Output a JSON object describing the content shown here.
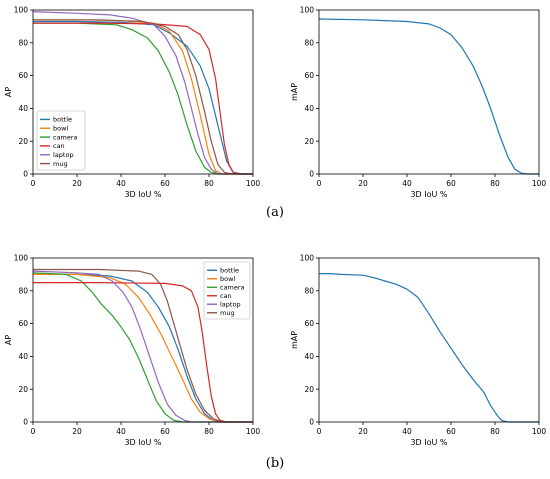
{
  "captions": {
    "a": "(a)",
    "b": "(b)"
  },
  "chart_data": [
    {
      "id": "a-left",
      "type": "line",
      "xlabel": "3D IoU %",
      "ylabel": "AP",
      "xlim": [
        0,
        100
      ],
      "ylim": [
        0,
        100
      ],
      "xticks": [
        0,
        20,
        40,
        60,
        80,
        100
      ],
      "yticks": [
        0,
        20,
        40,
        60,
        80,
        100
      ],
      "grid": false,
      "legend": "lower-left",
      "series": [
        {
          "name": "bottle",
          "color": "#1f77b4",
          "points": [
            [
              0,
              93
            ],
            [
              20,
              93
            ],
            [
              40,
              92.5
            ],
            [
              55,
              91
            ],
            [
              62,
              86
            ],
            [
              70,
              78
            ],
            [
              76,
              66
            ],
            [
              80,
              52
            ],
            [
              84,
              30
            ],
            [
              88,
              8
            ],
            [
              91,
              1
            ],
            [
              95,
              0
            ],
            [
              100,
              0
            ]
          ]
        },
        {
          "name": "bowl",
          "color": "#ff7f0e",
          "points": [
            [
              0,
              94
            ],
            [
              20,
              94
            ],
            [
              40,
              93.5
            ],
            [
              55,
              92
            ],
            [
              62,
              87
            ],
            [
              68,
              75
            ],
            [
              72,
              58
            ],
            [
              76,
              36
            ],
            [
              80,
              12
            ],
            [
              83,
              2
            ],
            [
              86,
              0
            ],
            [
              100,
              0
            ]
          ]
        },
        {
          "name": "camera",
          "color": "#2ca02c",
          "points": [
            [
              0,
              92
            ],
            [
              20,
              92
            ],
            [
              38,
              91
            ],
            [
              45,
              88
            ],
            [
              52,
              83
            ],
            [
              57,
              75
            ],
            [
              62,
              62
            ],
            [
              66,
              48
            ],
            [
              70,
              30
            ],
            [
              74,
              14
            ],
            [
              78,
              4
            ],
            [
              81,
              1
            ],
            [
              84,
              0
            ],
            [
              100,
              0
            ]
          ]
        },
        {
          "name": "can",
          "color": "#d62728",
          "points": [
            [
              0,
              92
            ],
            [
              30,
              92
            ],
            [
              55,
              91.5
            ],
            [
              70,
              90
            ],
            [
              76,
              85
            ],
            [
              80,
              76
            ],
            [
              83,
              58
            ],
            [
              85,
              38
            ],
            [
              87,
              18
            ],
            [
              89,
              6
            ],
            [
              91,
              1
            ],
            [
              94,
              0
            ],
            [
              100,
              0
            ]
          ]
        },
        {
          "name": "laptop",
          "color": "#9467bd",
          "points": [
            [
              0,
              99
            ],
            [
              20,
              98
            ],
            [
              35,
              97
            ],
            [
              45,
              95
            ],
            [
              55,
              91
            ],
            [
              60,
              84
            ],
            [
              65,
              72
            ],
            [
              69,
              56
            ],
            [
              72,
              40
            ],
            [
              75,
              24
            ],
            [
              78,
              10
            ],
            [
              81,
              3
            ],
            [
              84,
              0
            ],
            [
              100,
              0
            ]
          ]
        },
        {
          "name": "mug",
          "color": "#8c564b",
          "points": [
            [
              0,
              94
            ],
            [
              30,
              94
            ],
            [
              50,
              93
            ],
            [
              60,
              90
            ],
            [
              66,
              85
            ],
            [
              70,
              76
            ],
            [
              74,
              60
            ],
            [
              78,
              38
            ],
            [
              81,
              20
            ],
            [
              84,
              6
            ],
            [
              87,
              1
            ],
            [
              90,
              0
            ],
            [
              100,
              0
            ]
          ]
        }
      ]
    },
    {
      "id": "a-right",
      "type": "line",
      "xlabel": "3D IoU %",
      "ylabel": "mAP",
      "xlim": [
        0,
        100
      ],
      "ylim": [
        0,
        100
      ],
      "xticks": [
        0,
        20,
        40,
        60,
        80,
        100
      ],
      "yticks": [
        0,
        20,
        40,
        60,
        80,
        100
      ],
      "grid": false,
      "series": [
        {
          "name": "",
          "color": "#1f77b4",
          "points": [
            [
              0,
              94.5
            ],
            [
              20,
              94
            ],
            [
              40,
              93
            ],
            [
              50,
              91.5
            ],
            [
              55,
              89
            ],
            [
              60,
              85
            ],
            [
              65,
              77
            ],
            [
              70,
              66
            ],
            [
              74,
              54
            ],
            [
              78,
              40
            ],
            [
              82,
              24
            ],
            [
              86,
              10
            ],
            [
              89,
              3
            ],
            [
              92,
              0.5
            ],
            [
              95,
              0
            ],
            [
              100,
              0
            ]
          ]
        }
      ]
    },
    {
      "id": "b-left",
      "type": "line",
      "xlabel": "3D IoU %",
      "ylabel": "AP",
      "xlim": [
        0,
        100
      ],
      "ylim": [
        0,
        100
      ],
      "xticks": [
        0,
        20,
        40,
        60,
        80,
        100
      ],
      "yticks": [
        0,
        20,
        40,
        60,
        80,
        100
      ],
      "grid": false,
      "legend": "upper-right",
      "series": [
        {
          "name": "bottle",
          "color": "#1f77b4",
          "points": [
            [
              0,
              90
            ],
            [
              20,
              90
            ],
            [
              35,
              89
            ],
            [
              45,
              86
            ],
            [
              52,
              79
            ],
            [
              57,
              70
            ],
            [
              62,
              58
            ],
            [
              66,
              44
            ],
            [
              70,
              28
            ],
            [
              74,
              14
            ],
            [
              78,
              5
            ],
            [
              82,
              1
            ],
            [
              86,
              0
            ],
            [
              100,
              0
            ]
          ]
        },
        {
          "name": "bowl",
          "color": "#ff7f0e",
          "points": [
            [
              0,
              90
            ],
            [
              20,
              90
            ],
            [
              35,
              88
            ],
            [
              42,
              84
            ],
            [
              48,
              76
            ],
            [
              53,
              66
            ],
            [
              58,
              54
            ],
            [
              63,
              40
            ],
            [
              68,
              26
            ],
            [
              72,
              14
            ],
            [
              76,
              6
            ],
            [
              80,
              2
            ],
            [
              84,
              0
            ],
            [
              100,
              0
            ]
          ]
        },
        {
          "name": "camera",
          "color": "#2ca02c",
          "points": [
            [
              0,
              91
            ],
            [
              15,
              90
            ],
            [
              22,
              86
            ],
            [
              27,
              79
            ],
            [
              31,
              72
            ],
            [
              36,
              65
            ],
            [
              40,
              58
            ],
            [
              44,
              50
            ],
            [
              48,
              39
            ],
            [
              52,
              26
            ],
            [
              56,
              13
            ],
            [
              60,
              5
            ],
            [
              64,
              1
            ],
            [
              68,
              0
            ],
            [
              100,
              0
            ]
          ]
        },
        {
          "name": "can",
          "color": "#d62728",
          "points": [
            [
              0,
              85
            ],
            [
              30,
              85
            ],
            [
              60,
              84.5
            ],
            [
              68,
              83
            ],
            [
              72,
              80
            ],
            [
              75,
              70
            ],
            [
              77,
              54
            ],
            [
              79,
              34
            ],
            [
              81,
              16
            ],
            [
              83,
              5
            ],
            [
              85,
              1
            ],
            [
              88,
              0
            ],
            [
              100,
              0
            ]
          ]
        },
        {
          "name": "laptop",
          "color": "#9467bd",
          "points": [
            [
              0,
              92
            ],
            [
              20,
              91
            ],
            [
              30,
              90
            ],
            [
              36,
              86
            ],
            [
              41,
              79
            ],
            [
              45,
              70
            ],
            [
              49,
              56
            ],
            [
              53,
              40
            ],
            [
              57,
              24
            ],
            [
              61,
              11
            ],
            [
              65,
              4
            ],
            [
              69,
              1
            ],
            [
              72,
              0
            ],
            [
              100,
              0
            ]
          ]
        },
        {
          "name": "mug",
          "color": "#8c564b",
          "points": [
            [
              0,
              93
            ],
            [
              30,
              93
            ],
            [
              48,
              92
            ],
            [
              54,
              90
            ],
            [
              58,
              84
            ],
            [
              61,
              74
            ],
            [
              64,
              60
            ],
            [
              67,
              46
            ],
            [
              70,
              32
            ],
            [
              74,
              17
            ],
            [
              78,
              7
            ],
            [
              82,
              2
            ],
            [
              86,
              0
            ],
            [
              100,
              0
            ]
          ]
        }
      ]
    },
    {
      "id": "b-right",
      "type": "line",
      "xlabel": "3D IoU %",
      "ylabel": "mAP",
      "xlim": [
        0,
        100
      ],
      "ylim": [
        0,
        100
      ],
      "xticks": [
        0,
        20,
        40,
        60,
        80,
        100
      ],
      "yticks": [
        0,
        20,
        40,
        60,
        80,
        100
      ],
      "grid": false,
      "series": [
        {
          "name": "",
          "color": "#1f77b4",
          "points": [
            [
              0,
              90.5
            ],
            [
              5,
              90.5
            ],
            [
              10,
              90
            ],
            [
              20,
              89.5
            ],
            [
              25,
              88
            ],
            [
              30,
              86
            ],
            [
              35,
              84
            ],
            [
              40,
              81
            ],
            [
              45,
              76
            ],
            [
              50,
              66
            ],
            [
              55,
              55
            ],
            [
              60,
              45
            ],
            [
              65,
              35
            ],
            [
              70,
              26
            ],
            [
              75,
              18
            ],
            [
              78,
              10
            ],
            [
              81,
              4
            ],
            [
              83,
              1
            ],
            [
              86,
              0
            ],
            [
              90,
              0
            ],
            [
              100,
              0
            ]
          ]
        }
      ]
    }
  ]
}
